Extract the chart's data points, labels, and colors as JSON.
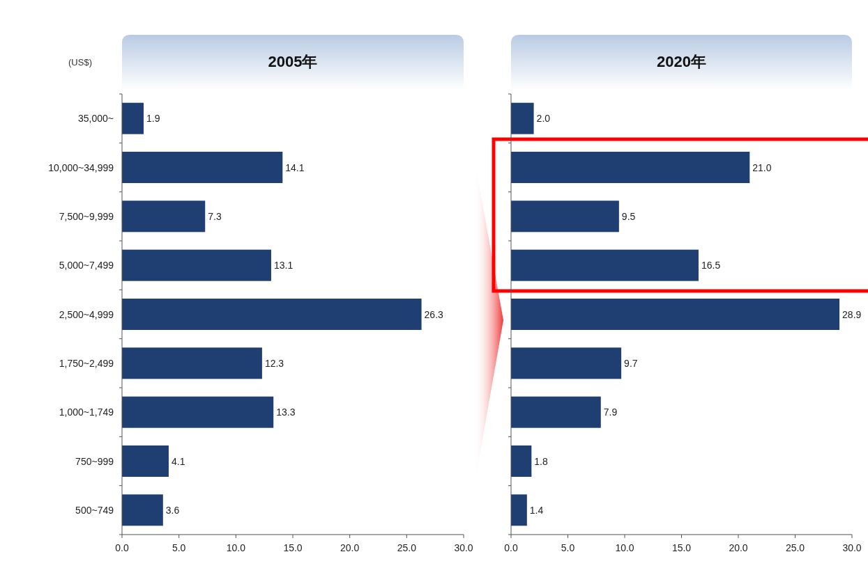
{
  "chart_data": [
    {
      "type": "bar",
      "orientation": "horizontal",
      "title": "2005年",
      "ylabel": "(US$)",
      "categories": [
        "35,000~",
        "10,000~34,999",
        "7,500~9,999",
        "5,000~7,499",
        "2,500~4,999",
        "1,750~2,499",
        "1,000~1,749",
        "750~999",
        "500~749"
      ],
      "values": [
        1.9,
        14.1,
        7.3,
        13.1,
        26.3,
        12.3,
        13.3,
        4.1,
        3.6
      ],
      "value_labels": [
        "1.9",
        "14.1",
        "7.3",
        "13.1",
        "26.3",
        "12.3",
        "13.3",
        "4.1",
        "3.6"
      ],
      "color": "#1f3f73",
      "xlim": [
        0,
        30
      ],
      "xticks": [
        {
          "value": 0,
          "label": "0.0"
        },
        {
          "value": 5,
          "label": "5.0"
        },
        {
          "value": 10,
          "label": "10.0"
        },
        {
          "value": 15,
          "label": "15.0"
        },
        {
          "value": 20,
          "label": "20.0"
        },
        {
          "value": 25,
          "label": "25.0"
        },
        {
          "value": 30,
          "label": "30.0"
        }
      ],
      "grid": false
    },
    {
      "type": "bar",
      "orientation": "horizontal",
      "title": "2020年",
      "categories": [
        null,
        null,
        null,
        null,
        null,
        null,
        null,
        null,
        null
      ],
      "values": [
        2.0,
        21.0,
        9.5,
        16.5,
        28.9,
        9.7,
        7.9,
        1.8,
        1.4
      ],
      "value_labels": [
        "2.0",
        "21.0",
        "9.5",
        "16.5",
        "28.9",
        "9.7",
        "7.9",
        "1.8",
        "1.4"
      ],
      "color": "#1f3f73",
      "xlim": [
        0,
        30
      ],
      "xticks": [
        {
          "value": 0,
          "label": "0.0"
        },
        {
          "value": 5,
          "label": "5.0"
        },
        {
          "value": 10,
          "label": "10.0"
        },
        {
          "value": 15,
          "label": "15.0"
        },
        {
          "value": 20,
          "label": "20.0"
        },
        {
          "value": 25,
          "label": "25.0"
        },
        {
          "value": 30,
          "label": "30.0"
        }
      ],
      "tick_labels": "x",
      "grid": false
    }
  ]
}
